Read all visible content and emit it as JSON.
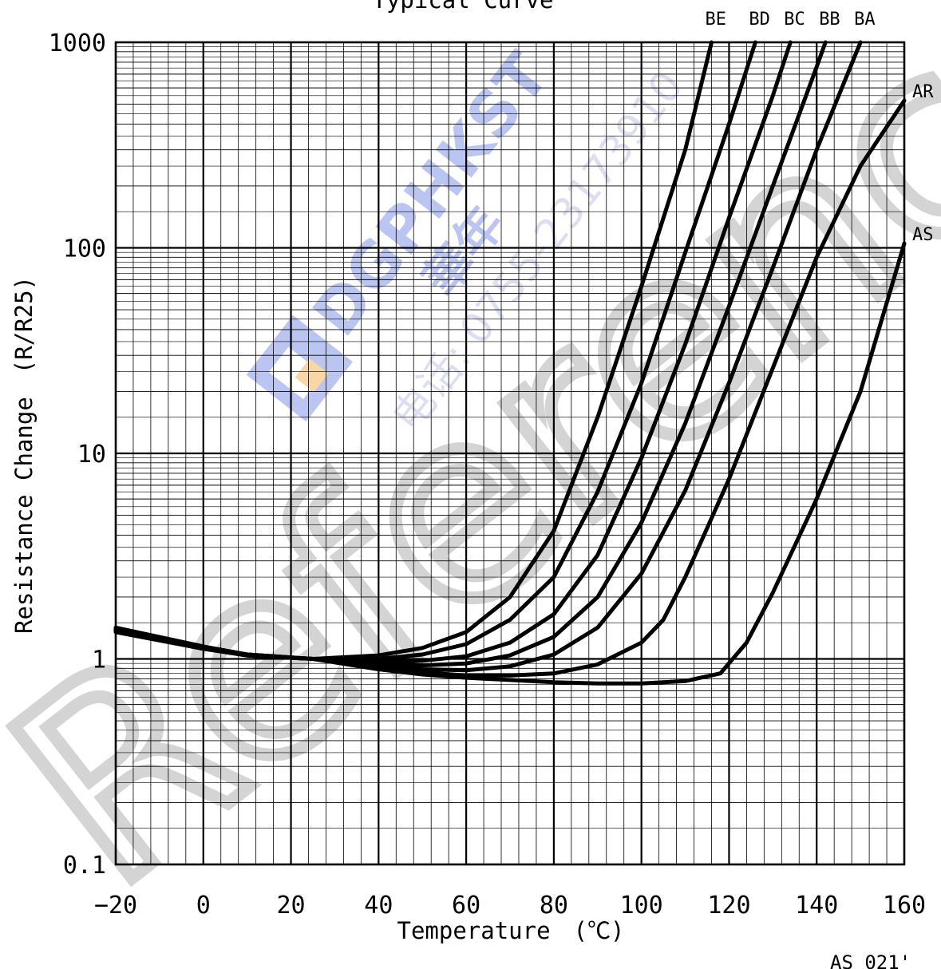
{
  "chart_data": {
    "type": "line",
    "title": "Typical Curve",
    "xlabel": "Temperature　(℃)",
    "ylabel": "Resistance Change　(R/R25)",
    "xlim": [
      -20,
      160
    ],
    "ylim": [
      0.1,
      1000
    ],
    "yscale": "log",
    "grid": true,
    "x_ticks": [
      "−20",
      "0",
      "20",
      "40",
      "60",
      "80",
      "100",
      "120",
      "140",
      "160"
    ],
    "y_ticks": [
      "0.1",
      "1",
      "10",
      "100",
      "1000"
    ],
    "x_tick_values": [
      -20,
      0,
      20,
      40,
      60,
      80,
      100,
      120,
      140,
      160
    ],
    "y_tick_values": [
      0.1,
      1,
      10,
      100,
      1000
    ],
    "series": [
      {
        "name": "BE",
        "label_pos": "top",
        "points": [
          [
            -20,
            1.35
          ],
          [
            0,
            1.12
          ],
          [
            10,
            1.05
          ],
          [
            25,
            1.0
          ],
          [
            40,
            1.04
          ],
          [
            50,
            1.13
          ],
          [
            60,
            1.35
          ],
          [
            70,
            2.0
          ],
          [
            80,
            4.2
          ],
          [
            90,
            15
          ],
          [
            100,
            65
          ],
          [
            110,
            300
          ],
          [
            116,
            1000
          ]
        ]
      },
      {
        "name": "BD",
        "label_pos": "top",
        "points": [
          [
            -20,
            1.36
          ],
          [
            0,
            1.12
          ],
          [
            10,
            1.04
          ],
          [
            25,
            1.0
          ],
          [
            40,
            1.0
          ],
          [
            50,
            1.05
          ],
          [
            60,
            1.18
          ],
          [
            70,
            1.55
          ],
          [
            80,
            2.5
          ],
          [
            90,
            6.5
          ],
          [
            100,
            22
          ],
          [
            110,
            95
          ],
          [
            120,
            400
          ],
          [
            126,
            1000
          ]
        ]
      },
      {
        "name": "BC",
        "label_pos": "top",
        "points": [
          [
            -20,
            1.37
          ],
          [
            0,
            1.12
          ],
          [
            10,
            1.04
          ],
          [
            25,
            1.0
          ],
          [
            40,
            0.97
          ],
          [
            50,
            0.98
          ],
          [
            60,
            1.03
          ],
          [
            70,
            1.2
          ],
          [
            80,
            1.65
          ],
          [
            90,
            3.2
          ],
          [
            100,
            9.5
          ],
          [
            110,
            34
          ],
          [
            120,
            140
          ],
          [
            130,
            550
          ],
          [
            134,
            1000
          ]
        ]
      },
      {
        "name": "BB",
        "label_pos": "top",
        "points": [
          [
            -20,
            1.38
          ],
          [
            0,
            1.13
          ],
          [
            10,
            1.04
          ],
          [
            25,
            1.0
          ],
          [
            40,
            0.95
          ],
          [
            50,
            0.93
          ],
          [
            60,
            0.95
          ],
          [
            70,
            1.04
          ],
          [
            80,
            1.28
          ],
          [
            90,
            2.0
          ],
          [
            100,
            4.6
          ],
          [
            110,
            14
          ],
          [
            120,
            52
          ],
          [
            130,
            200
          ],
          [
            140,
            760
          ],
          [
            142,
            1000
          ]
        ]
      },
      {
        "name": "BA",
        "label_pos": "top",
        "points": [
          [
            -20,
            1.39
          ],
          [
            0,
            1.13
          ],
          [
            10,
            1.04
          ],
          [
            25,
            1.0
          ],
          [
            40,
            0.93
          ],
          [
            50,
            0.89
          ],
          [
            60,
            0.88
          ],
          [
            70,
            0.92
          ],
          [
            80,
            1.05
          ],
          [
            90,
            1.42
          ],
          [
            100,
            2.6
          ],
          [
            110,
            6.6
          ],
          [
            120,
            22
          ],
          [
            130,
            80
          ],
          [
            140,
            300
          ],
          [
            150,
            1000
          ]
        ]
      },
      {
        "name": "AR",
        "label_pos": "right",
        "points": [
          [
            -20,
            1.4
          ],
          [
            0,
            1.14
          ],
          [
            10,
            1.05
          ],
          [
            25,
            1.0
          ],
          [
            40,
            0.91
          ],
          [
            50,
            0.86
          ],
          [
            60,
            0.83
          ],
          [
            70,
            0.83
          ],
          [
            80,
            0.85
          ],
          [
            90,
            0.94
          ],
          [
            100,
            1.2
          ],
          [
            105,
            1.55
          ],
          [
            110,
            2.5
          ],
          [
            120,
            7.5
          ],
          [
            130,
            26
          ],
          [
            140,
            90
          ],
          [
            150,
            250
          ],
          [
            160,
            520
          ]
        ]
      },
      {
        "name": "AS",
        "label_pos": "right",
        "points": [
          [
            -20,
            1.42
          ],
          [
            0,
            1.15
          ],
          [
            10,
            1.05
          ],
          [
            25,
            1.0
          ],
          [
            40,
            0.89
          ],
          [
            50,
            0.84
          ],
          [
            60,
            0.81
          ],
          [
            70,
            0.79
          ],
          [
            80,
            0.77
          ],
          [
            90,
            0.76
          ],
          [
            100,
            0.76
          ],
          [
            110,
            0.78
          ],
          [
            118,
            0.85
          ],
          [
            124,
            1.2
          ],
          [
            130,
            2.1
          ],
          [
            140,
            6.0
          ],
          [
            150,
            20
          ],
          [
            160,
            105
          ]
        ]
      }
    ]
  },
  "annotations": {
    "code": "AS 021'",
    "watermark_brand": "DGPHKST",
    "watermark_cn": "華年",
    "watermark_phone": "电话: 0755-23173910",
    "watermark_big": "Reference Only"
  }
}
